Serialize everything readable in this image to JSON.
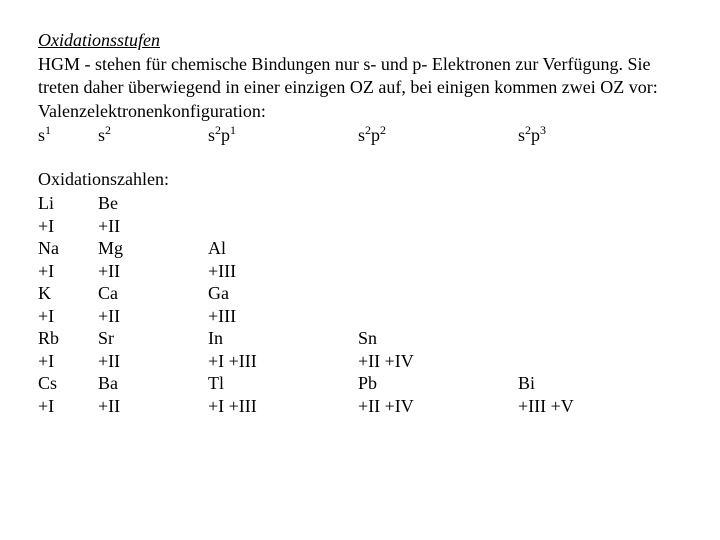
{
  "title": "Oxidationsstufen",
  "para1": "HGM - stehen für chemische Bindungen nur s- und p- Elektronen zur Verfügung. Sie treten daher überwiegend in einer einzigen OZ auf, bei einigen kommen zwei OZ vor:",
  "para2": "Valenzelektronenkonfiguration:",
  "config": {
    "c0": "s",
    "c1": "s",
    "c2": "s",
    "c2b": "p",
    "c3": "s",
    "c3b": "p",
    "c4": "s",
    "c4b": "p"
  },
  "sup": {
    "c0": "1",
    "c1": "2",
    "c2a": "2",
    "c2b": "1",
    "c3a": "2",
    "c3b": "2",
    "c4a": "2",
    "c4b": "3"
  },
  "oxTitle": "Oxidationszahlen:",
  "row1": {
    "c0": "Li",
    "c1": " Be",
    "c2": "",
    "c3": "",
    "c4": ""
  },
  "row2": {
    "c0": "+I",
    "c1": "+II",
    "c2": "",
    "c3": "",
    "c4": ""
  },
  "row3": {
    "c0": "Na",
    "c1": " Mg",
    "c2": " Al",
    "c3": "",
    "c4": ""
  },
  "row4": {
    "c0": "+I",
    "c1": "+II",
    "c2": "+III",
    "c3": "",
    "c4": ""
  },
  "row5": {
    "c0": "K",
    "c1": " Ca",
    "c2": " Ga",
    "c3": "",
    "c4": ""
  },
  "row6": {
    "c0": "+I",
    "c1": "+II",
    "c2": "+III",
    "c3": "",
    "c4": ""
  },
  "row7": {
    "c0": "Rb",
    "c1": " Sr",
    "c2": " In",
    "c3": " Sn",
    "c4": ""
  },
  "row8": {
    "c0": "+I",
    "c1": "+II",
    "c2": "+I +III",
    "c3": "+II +IV",
    "c4": ""
  },
  "row9": {
    "c0": "Cs",
    "c1": " Ba",
    "c2": " Tl",
    "c3": " Pb",
    "c4": " Bi"
  },
  "row10": {
    "c0": "+I",
    "c1": "+II",
    "c2": "+I +III",
    "c3": "+II +IV",
    "c4": "+III +V"
  }
}
